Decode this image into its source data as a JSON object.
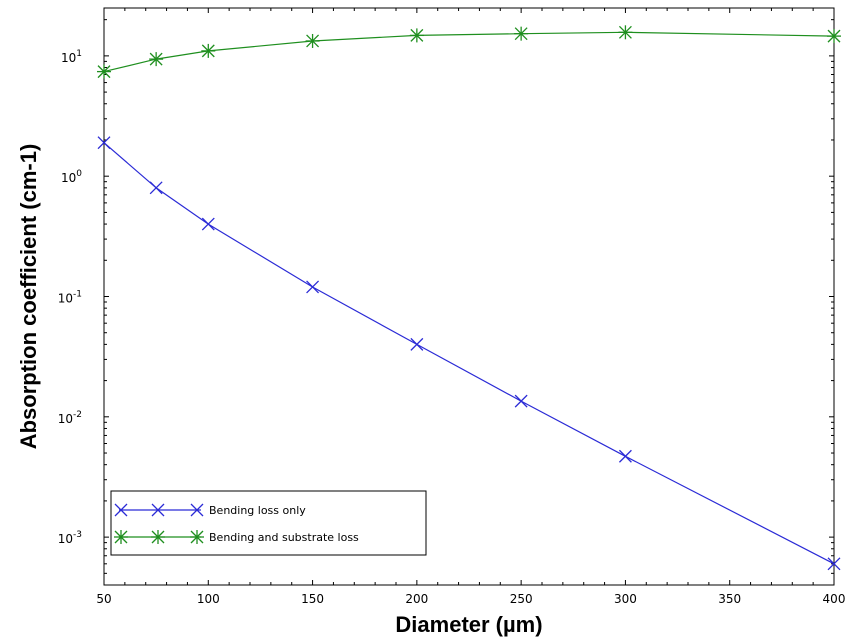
{
  "chart_data": {
    "type": "line",
    "title": "",
    "xlabel": "Diameter (µm)",
    "ylabel": "Absorption coefficient (cm-1)",
    "x_scale": "linear",
    "y_scale": "log",
    "xlim": [
      50,
      400
    ],
    "ylim": [
      0.0004,
      25
    ],
    "x_ticks": [
      50,
      100,
      150,
      200,
      250,
      300,
      350,
      400
    ],
    "x_tick_labels": [
      "50",
      "100",
      "150",
      "200",
      "250",
      "300",
      "350",
      "400"
    ],
    "y_ticks": [
      {
        "value": 0.001,
        "base": "10",
        "exp": "-3"
      },
      {
        "value": 0.01,
        "base": "10",
        "exp": "-2"
      },
      {
        "value": 0.1,
        "base": "10",
        "exp": "-1"
      },
      {
        "value": 1,
        "base": "10",
        "exp": "0"
      },
      {
        "value": 10,
        "base": "10",
        "exp": "1"
      }
    ],
    "grid": false,
    "legend_position": "bottom-left",
    "series": [
      {
        "name": "Bending loss only",
        "color": "#2b2bd6",
        "marker": "x",
        "x": [
          50,
          75,
          100,
          150,
          200,
          250,
          300,
          400
        ],
        "y": [
          1.9,
          0.8,
          0.4,
          0.12,
          0.04,
          0.0135,
          0.0047,
          0.0006
        ]
      },
      {
        "name": "Bending and substrate loss",
        "color": "#1f8f1f",
        "marker": "asterisk",
        "x": [
          50,
          75,
          100,
          150,
          200,
          250,
          300,
          400
        ],
        "y": [
          7.4,
          9.4,
          11.0,
          13.3,
          14.8,
          15.3,
          15.7,
          14.6
        ]
      }
    ]
  }
}
